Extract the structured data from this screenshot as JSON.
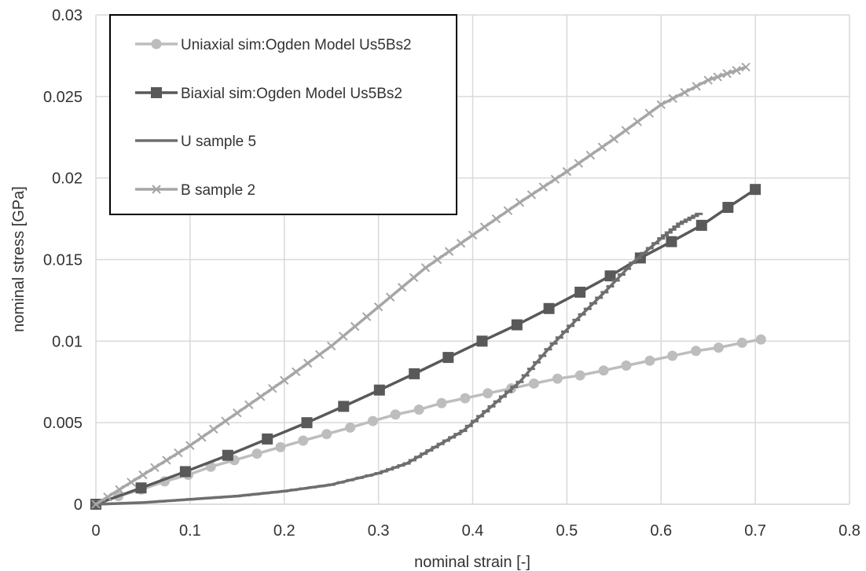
{
  "chart_data": {
    "type": "line",
    "title": "",
    "xlabel": "nominal strain [-]",
    "ylabel": "nominal stress [GPa]",
    "xlim": [
      0,
      0.8
    ],
    "ylim": [
      0,
      0.03
    ],
    "x_ticks": [
      "0",
      "0.1",
      "0.2",
      "0.3",
      "0.4",
      "0.5",
      "0.6",
      "0.7",
      "0.8"
    ],
    "y_ticks": [
      "0",
      "0.005",
      "0.01",
      "0.015",
      "0.02",
      "0.025",
      "0.03"
    ],
    "grid": true,
    "legend_position": "top-left, inside",
    "series": [
      {
        "name": "Uniaxial sim:Ogden Model Us5Bs2",
        "color": "#bdbdbd",
        "marker": "circle",
        "x": [
          0,
          0.024,
          0.048,
          0.073,
          0.098,
          0.122,
          0.147,
          0.171,
          0.196,
          0.22,
          0.245,
          0.27,
          0.294,
          0.318,
          0.343,
          0.367,
          0.392,
          0.416,
          0.441,
          0.465,
          0.49,
          0.514,
          0.539,
          0.563,
          0.588,
          0.612,
          0.637,
          0.661,
          0.686,
          0.706
        ],
        "y": [
          0,
          0.0005,
          0.0009,
          0.0014,
          0.0018,
          0.0023,
          0.0027,
          0.0031,
          0.0035,
          0.0039,
          0.0043,
          0.0047,
          0.0051,
          0.0055,
          0.0058,
          0.0062,
          0.0065,
          0.0068,
          0.0071,
          0.0074,
          0.0077,
          0.0079,
          0.0082,
          0.0085,
          0.0088,
          0.0091,
          0.0094,
          0.0096,
          0.0099,
          0.0101
        ]
      },
      {
        "name": "Biaxial sim:Ogden Model Us5Bs2",
        "color": "#595959",
        "marker": "square",
        "x": [
          0,
          0.048,
          0.095,
          0.14,
          0.182,
          0.224,
          0.263,
          0.301,
          0.338,
          0.374,
          0.41,
          0.447,
          0.481,
          0.514,
          0.546,
          0.578,
          0.611,
          0.643,
          0.671,
          0.7
        ],
        "y": [
          0,
          0.001,
          0.002,
          0.003,
          0.004,
          0.005,
          0.006,
          0.007,
          0.008,
          0.009,
          0.01,
          0.011,
          0.012,
          0.013,
          0.014,
          0.0151,
          0.0161,
          0.0171,
          0.0182,
          0.0193
        ]
      },
      {
        "name": "U sample 5",
        "color": "#6e6e6e",
        "marker": "dash",
        "x": [
          0,
          0.05,
          0.1,
          0.15,
          0.2,
          0.25,
          0.3,
          0.33,
          0.36,
          0.39,
          0.42,
          0.45,
          0.48,
          0.51,
          0.54,
          0.57,
          0.6,
          0.62,
          0.64
        ],
        "y": [
          0,
          0.0001,
          0.0003,
          0.0005,
          0.0008,
          0.0012,
          0.0019,
          0.0025,
          0.0035,
          0.0045,
          0.006,
          0.0075,
          0.0095,
          0.0113,
          0.013,
          0.0148,
          0.0163,
          0.0172,
          0.0178
        ]
      },
      {
        "name": "B sample 2",
        "color": "#a6a6a6",
        "marker": "x",
        "x": [
          0,
          0.05,
          0.1,
          0.15,
          0.2,
          0.25,
          0.3,
          0.35,
          0.4,
          0.45,
          0.5,
          0.55,
          0.6,
          0.65,
          0.69
        ],
        "y": [
          0,
          0.0018,
          0.0036,
          0.0056,
          0.0076,
          0.0097,
          0.0121,
          0.0145,
          0.0165,
          0.0185,
          0.0204,
          0.0224,
          0.0245,
          0.026,
          0.0268
        ]
      }
    ]
  }
}
